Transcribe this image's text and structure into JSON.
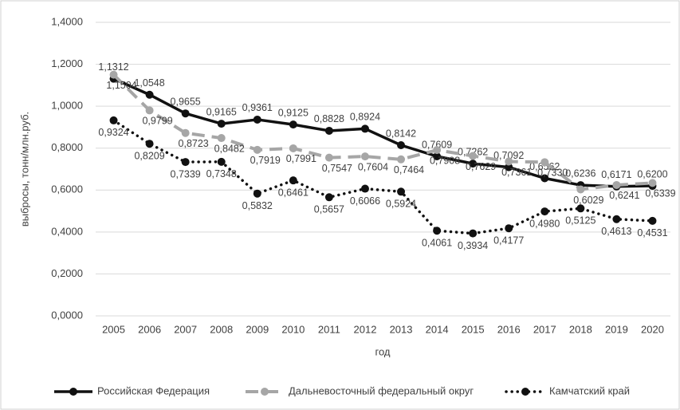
{
  "chart_data": {
    "type": "line",
    "y_label": "выбросы, тонн/млн.руб.",
    "x_label": "год",
    "categories": [
      "2005",
      "2006",
      "2007",
      "2008",
      "2009",
      "2010",
      "2011",
      "2012",
      "2013",
      "2014",
      "2015",
      "2016",
      "2017",
      "2018",
      "2019",
      "2020"
    ],
    "series": [
      {
        "name": "Российская Федерация",
        "color": "#111111",
        "style": "solid",
        "values": [
          1.1312,
          1.0548,
          0.9655,
          0.9165,
          0.9361,
          0.9125,
          0.8828,
          0.8924,
          0.8142,
          0.7609,
          0.7262,
          0.7092,
          0.6562,
          0.6236,
          0.6171,
          0.62
        ],
        "value_labels": [
          "1,1312",
          "1,0548",
          "0,9655",
          "0,9165",
          "0,9361",
          "0,9125",
          "0,8828",
          "0,8924",
          "0,8142",
          "0,7609",
          "0,7262",
          "0,7092",
          "0,6562",
          "0,6236",
          "0,6171",
          "0,6200"
        ]
      },
      {
        "name": "Дальневосточный федеральный округ",
        "color": "#a6a6a6",
        "style": "dashed",
        "values": [
          1.1504,
          0.9799,
          0.8723,
          0.8482,
          0.7919,
          0.7991,
          0.7547,
          0.7604,
          0.7464,
          0.7908,
          0.7629,
          0.7361,
          0.733,
          0.6029,
          0.6241,
          0.6339
        ],
        "value_labels": [
          "1,1504",
          "0,9799",
          "0,8723",
          "0,8482",
          "0,7919",
          "0,7991",
          "0,7547",
          "0,7604",
          "0,7464",
          "0,7908",
          "0,7629",
          "0,7361",
          "0,7330",
          "0,6029",
          "0,6241",
          "0,6339"
        ]
      },
      {
        "name": "Камчатский край",
        "color": "#111111",
        "style": "dotted",
        "values": [
          0.9324,
          0.8209,
          0.7339,
          0.7348,
          0.5832,
          0.6461,
          0.5657,
          0.6066,
          0.5924,
          0.4061,
          0.3934,
          0.4177,
          0.498,
          0.5125,
          0.4613,
          0.4531
        ],
        "value_labels": [
          "0,9324",
          "0,8209",
          "0,7339",
          "0,7348",
          "0,5832",
          "0,6461",
          "0,5657",
          "0,6066",
          "0,5924",
          "0,4061",
          "0,3934",
          "0,4177",
          "0,4980",
          "0,5125",
          "0,4613",
          "0,4531"
        ]
      }
    ],
    "ylim": [
      0,
      1.4
    ],
    "yticks": [
      {
        "value": 0,
        "label": "0,0000"
      },
      {
        "value": 0.2,
        "label": "0,2000"
      },
      {
        "value": 0.4,
        "label": "0,4000"
      },
      {
        "value": 0.6,
        "label": "0,6000"
      },
      {
        "value": 0.8,
        "label": "0,8000"
      },
      {
        "value": 1,
        "label": "1,0000"
      },
      {
        "value": 1.2,
        "label": "1,2000"
      },
      {
        "value": 1.4,
        "label": "1,4000"
      }
    ],
    "grid": true,
    "legend": "bottom"
  }
}
